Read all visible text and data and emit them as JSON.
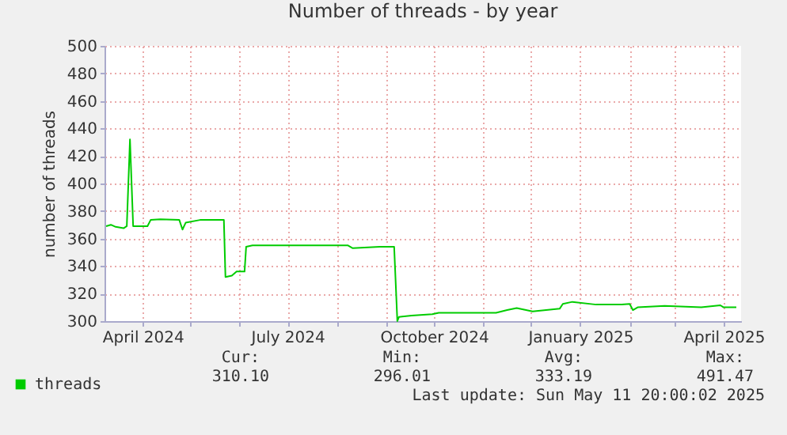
{
  "chart_data": {
    "type": "line",
    "title": "Number of threads - by year",
    "ylabel": "number of threads",
    "x": [
      "2024-03-09",
      "2024-03-12",
      "2024-03-15",
      "2024-03-20",
      "2024-03-22",
      "2024-03-24",
      "2024-03-26",
      "2024-04-04",
      "2024-04-06",
      "2024-04-12",
      "2024-04-24",
      "2024-04-26",
      "2024-04-28",
      "2024-05-07",
      "2024-05-22",
      "2024-05-23",
      "2024-05-27",
      "2024-05-30",
      "2024-06-04",
      "2024-06-05",
      "2024-06-09",
      "2024-07-12",
      "2024-08-08",
      "2024-08-11",
      "2024-08-28",
      "2024-09-06",
      "2024-09-08",
      "2024-09-09",
      "2024-09-17",
      "2024-09-30",
      "2024-10-04",
      "2024-10-20",
      "2024-11-09",
      "2024-11-16",
      "2024-11-22",
      "2024-12-02",
      "2024-12-19",
      "2024-12-21",
      "2024-12-27",
      "2025-01-11",
      "2025-01-27",
      "2025-02-01",
      "2025-02-03",
      "2025-02-06",
      "2025-02-23",
      "2025-03-18",
      "2025-03-30",
      "2025-04-01",
      "2025-04-09"
    ],
    "series": [
      {
        "name": "threads",
        "color": "#00cc00",
        "values": [
          369,
          370,
          368.5,
          367.5,
          369,
          432,
          369,
          369,
          373.5,
          374,
          373.5,
          366.5,
          371.5,
          373.5,
          373.5,
          332,
          333,
          336,
          336,
          354,
          355,
          355,
          355,
          353,
          354,
          354,
          300,
          303,
          304,
          305,
          306,
          306,
          306,
          308,
          309.5,
          307,
          309,
          312.5,
          314,
          312,
          312,
          312.5,
          308,
          310,
          311,
          310,
          311.5,
          310,
          310
        ]
      }
    ],
    "xlim": [
      "2024-03-08",
      "2025-04-12"
    ],
    "xticks": [
      {
        "value": "2024-04-01",
        "label": "April 2024"
      },
      {
        "value": "2024-05-01",
        "label": null
      },
      {
        "value": "2024-06-01",
        "label": null
      },
      {
        "value": "2024-07-01",
        "label": "July 2024"
      },
      {
        "value": "2024-08-01",
        "label": null
      },
      {
        "value": "2024-09-01",
        "label": null
      },
      {
        "value": "2024-10-01",
        "label": "October 2024"
      },
      {
        "value": "2024-11-01",
        "label": null
      },
      {
        "value": "2024-12-01",
        "label": null
      },
      {
        "value": "2025-01-01",
        "label": "January 2025"
      },
      {
        "value": "2025-02-01",
        "label": null
      },
      {
        "value": "2025-03-01",
        "label": null
      },
      {
        "value": "2025-04-01",
        "label": "April 2025"
      }
    ],
    "ylim": [
      300,
      500
    ],
    "yticks": [
      300,
      320,
      340,
      360,
      380,
      400,
      420,
      440,
      460,
      480,
      500
    ],
    "grid": true,
    "legend": "bottom left",
    "marker": "none",
    "line_style": "solid",
    "annotations": [
      "Cur:",
      "Min:",
      "Avg:",
      "Max:",
      "310.10",
      "296.01",
      "333.19",
      "491.47",
      "Last update: Sun May 11 20:00:02 2025"
    ]
  }
}
